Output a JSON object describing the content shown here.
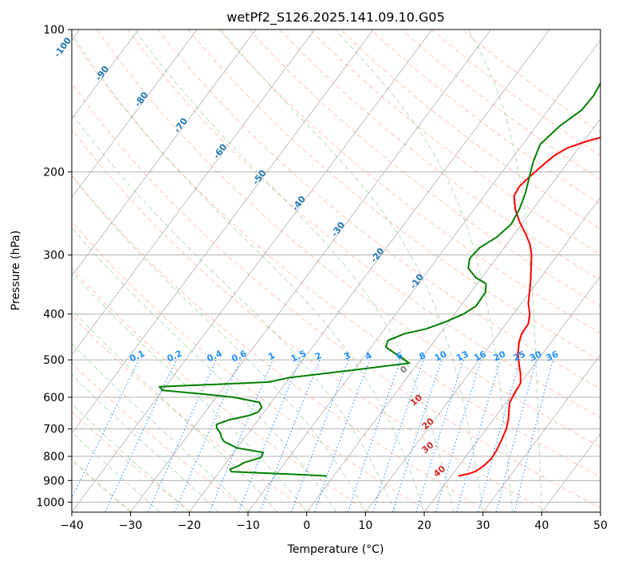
{
  "chart_data": {
    "type": "line",
    "title": "wetPf2_S126.2025.141.09.10.G05",
    "xlabel": "Temperature (°C)",
    "ylabel": "Pressure (hPa)",
    "xlim": [
      -40,
      50
    ],
    "ylim": [
      1050,
      100
    ],
    "y_scale": "log",
    "grid": true,
    "x_ticks": [
      -40,
      -30,
      -20,
      -10,
      0,
      10,
      20,
      30,
      40,
      50
    ],
    "x_tick_labels": [
      "−40",
      "−30",
      "−20",
      "−10",
      "0",
      "10",
      "20",
      "30",
      "40",
      "50"
    ],
    "y_ticks": [
      1000,
      900,
      800,
      700,
      600,
      500,
      400,
      300,
      200,
      100
    ],
    "y_tick_labels": [
      "1000",
      "900",
      "800",
      "700",
      "600",
      "500",
      "400",
      "300",
      "200",
      "100"
    ],
    "colors": {
      "temperature": "#ff0000",
      "dewpoint": "#008000",
      "isotherm": "#808080",
      "dry_adiabat": "#ff7f50",
      "moist_adiabat": "#2ca02c",
      "mixing_ratio": "#1e90ff",
      "isotherm_label": "#1f77b4",
      "moist_label": "#d62728"
    },
    "series": [
      {
        "key": "temperature",
        "points": [
          [
            21.2,
            880
          ],
          [
            22.8,
            870
          ],
          [
            23.6,
            860
          ],
          [
            24.2,
            840
          ],
          [
            24.6,
            810
          ],
          [
            24.5,
            780
          ],
          [
            24.0,
            740
          ],
          [
            23.4,
            700
          ],
          [
            22.6,
            670
          ],
          [
            21.5,
            640
          ],
          [
            20.6,
            615
          ],
          [
            20.3,
            590
          ],
          [
            20.0,
            560
          ],
          [
            18.8,
            535
          ],
          [
            17.3,
            510
          ],
          [
            15.8,
            485
          ],
          [
            14.6,
            460
          ],
          [
            13.9,
            440
          ],
          [
            13.8,
            420
          ],
          [
            12.8,
            400
          ],
          [
            11.2,
            380
          ],
          [
            10.0,
            360
          ],
          [
            8.7,
            340
          ],
          [
            7.2,
            320
          ],
          [
            5.6,
            300
          ],
          [
            4.0,
            285
          ],
          [
            1.8,
            270
          ],
          [
            -0.7,
            255
          ],
          [
            -3.0,
            240
          ],
          [
            -4.9,
            225
          ],
          [
            -5.2,
            215
          ],
          [
            -4.7,
            205
          ],
          [
            -4.0,
            195
          ],
          [
            -3.2,
            185
          ],
          [
            -1.9,
            178
          ],
          [
            0.7,
            172
          ],
          [
            4.5,
            166
          ],
          [
            6.5,
            158
          ],
          [
            8.5,
            148
          ],
          [
            10.8,
            138
          ],
          [
            13.0,
            128
          ],
          [
            14.0,
            120
          ],
          [
            14.3,
            113
          ],
          [
            13.8,
            107
          ],
          [
            13.5,
            103
          ],
          [
            13.6,
            100
          ]
        ]
      },
      {
        "key": "dewpoint",
        "points": [
          [
            -1.2,
            880
          ],
          [
            -8,
            872
          ],
          [
            -18,
            862
          ],
          [
            -18.5,
            852
          ],
          [
            -17.5,
            838
          ],
          [
            -17,
            825
          ],
          [
            -14.7,
            805
          ],
          [
            -15,
            785
          ],
          [
            -20,
            768
          ],
          [
            -23,
            745
          ],
          [
            -24,
            730
          ],
          [
            -24.7,
            715
          ],
          [
            -26,
            697
          ],
          [
            -26.5,
            685
          ],
          [
            -25,
            670
          ],
          [
            -22,
            655
          ],
          [
            -21,
            645
          ],
          [
            -21,
            630
          ],
          [
            -22,
            615
          ],
          [
            -27,
            600
          ],
          [
            -33,
            590
          ],
          [
            -40,
            580
          ],
          [
            -41,
            570
          ],
          [
            -30,
            562
          ],
          [
            -23,
            557
          ],
          [
            -20,
            545
          ],
          [
            -10,
            525
          ],
          [
            -1.5,
            508
          ],
          [
            -7.5,
            470
          ],
          [
            -8,
            455
          ],
          [
            -6,
            440
          ],
          [
            -3,
            430
          ],
          [
            -0.5,
            415
          ],
          [
            1.5,
            400
          ],
          [
            2.6,
            385
          ],
          [
            2.5,
            360
          ],
          [
            1.5,
            345
          ],
          [
            -1,
            335
          ],
          [
            -3.5,
            320
          ],
          [
            -4.5,
            305
          ],
          [
            -4.2,
            290
          ],
          [
            -2.6,
            275
          ],
          [
            -1.8,
            258
          ],
          [
            -2.3,
            240
          ],
          [
            -3.3,
            222
          ],
          [
            -4.7,
            205
          ],
          [
            -6.0,
            190
          ],
          [
            -7.0,
            175
          ],
          [
            -6.0,
            160
          ],
          [
            -4.3,
            148
          ],
          [
            -4.1,
            138
          ],
          [
            -4.6,
            128
          ],
          [
            -5.3,
            118
          ],
          [
            -4.5,
            112
          ],
          [
            -1,
            108
          ],
          [
            1.5,
            104
          ],
          [
            3.0,
            100
          ]
        ]
      }
    ],
    "mixing_ratio_labels": [
      "0.1",
      "0.2",
      "0.4",
      "0.6",
      "1",
      "1.5",
      "2",
      "3",
      "4",
      "6",
      "8",
      "10",
      "13",
      "16",
      "20",
      "25",
      "30",
      "36"
    ],
    "isotherm_labels": [
      "-100",
      "-90",
      "-80",
      "-70",
      "-60",
      "-50",
      "-40",
      "-30",
      "-20",
      "-10"
    ],
    "moist_labels": [
      "0",
      "10",
      "20",
      "30",
      "40"
    ]
  }
}
